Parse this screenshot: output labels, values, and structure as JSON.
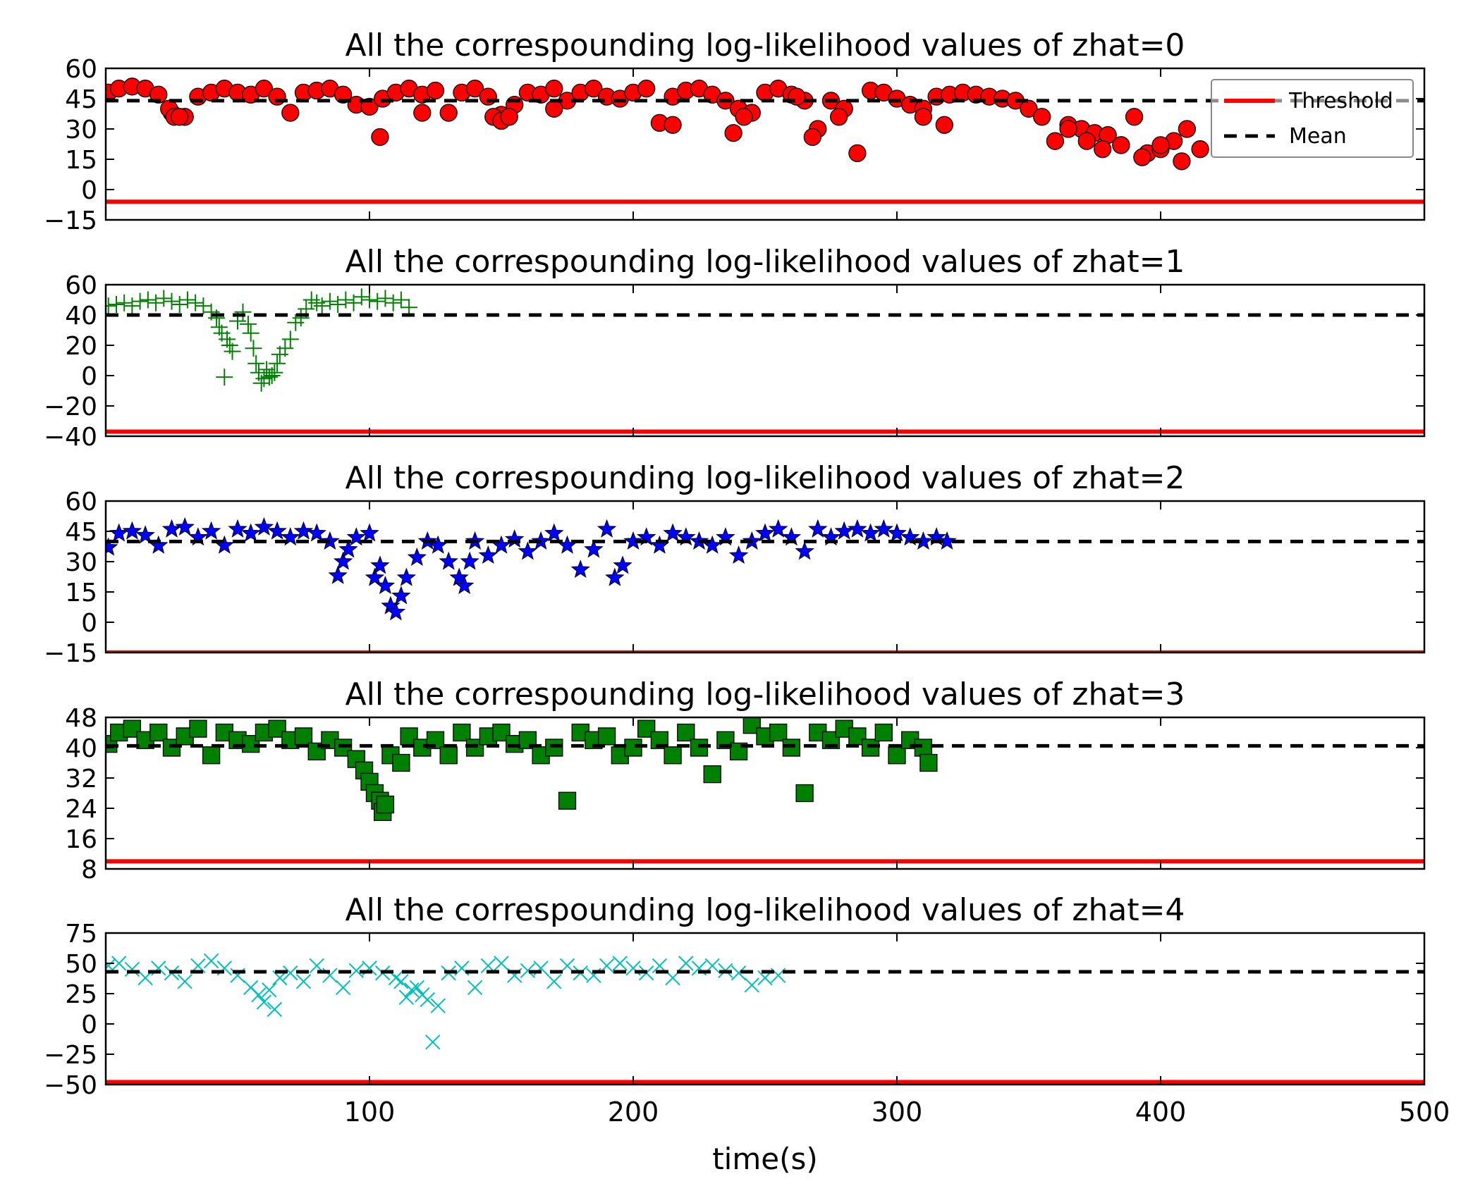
{
  "chart_data": [
    {
      "type": "scatter",
      "title": "All the correspounding log-likelihood values of zhat=0",
      "xlim": [
        0,
        500
      ],
      "ylim": [
        -15,
        60
      ],
      "yticks": [
        -15,
        0,
        15,
        30,
        45,
        60
      ],
      "threshold": -6,
      "mean": 44,
      "marker": "circle",
      "marker_color": "#ff0000",
      "series_range": [
        1,
        415
      ],
      "series": [
        {
          "x": [
            1,
            5,
            10,
            15,
            20,
            25,
            30,
            35,
            40,
            45,
            50,
            55,
            60,
            65,
            70,
            75,
            80,
            85,
            90,
            95,
            100,
            105,
            110,
            115,
            120,
            125,
            130,
            135,
            140,
            145,
            150,
            155,
            160,
            165,
            170,
            175,
            180,
            185,
            190,
            195,
            200,
            205,
            210,
            215,
            220,
            225,
            230,
            235,
            240,
            245,
            250,
            255,
            260,
            265,
            270,
            275,
            280,
            285,
            290,
            295,
            300,
            305,
            310,
            315,
            320,
            325,
            330,
            335,
            340,
            345,
            350,
            355,
            360,
            365,
            370,
            375,
            380,
            385,
            390,
            395,
            400,
            405,
            410,
            415
          ],
          "y": [
            48,
            50,
            51,
            50,
            47,
            38,
            36,
            46,
            48,
            50,
            48,
            47,
            50,
            46,
            38,
            48,
            49,
            50,
            47,
            42,
            41,
            45,
            48,
            50,
            47,
            49,
            38,
            48,
            50,
            46,
            37,
            42,
            48,
            47,
            50,
            44,
            48,
            50,
            46,
            45,
            48,
            50,
            33,
            46,
            49,
            50,
            47,
            44,
            40,
            38,
            48,
            50,
            47,
            44,
            30,
            44,
            40,
            18,
            49,
            48,
            45,
            42,
            40,
            46,
            47,
            48,
            47,
            46,
            45,
            44,
            40,
            36,
            24,
            32,
            30,
            28,
            27,
            22,
            36,
            18,
            20,
            24,
            30,
            20
          ]
        },
        {
          "x": [
            24,
            26,
            28,
            104,
            120,
            147,
            150,
            153,
            170,
            215,
            238,
            242,
            262,
            268,
            278,
            310,
            318,
            365,
            372,
            378,
            385,
            393,
            400,
            408
          ],
          "y": [
            40,
            36,
            36,
            26,
            38,
            36,
            34,
            36,
            40,
            32,
            28,
            36,
            46,
            26,
            36,
            36,
            32,
            30,
            24,
            20,
            22,
            16,
            22,
            14
          ]
        }
      ]
    },
    {
      "type": "scatter",
      "title": "All the correspounding log-likelihood values of zhat=1",
      "xlim": [
        0,
        500
      ],
      "ylim": [
        -40,
        60
      ],
      "yticks": [
        -40,
        -20,
        0,
        20,
        40,
        60
      ],
      "threshold": -37,
      "mean": 40,
      "marker": "plus",
      "marker_color": "#008000",
      "series_range": [
        1,
        116
      ],
      "series": [
        {
          "x": [
            1,
            4,
            7,
            10,
            13,
            16,
            19,
            22,
            25,
            28,
            31,
            34,
            37,
            40,
            42,
            43,
            44,
            45,
            46,
            47,
            48,
            50,
            52,
            54,
            55,
            56,
            57,
            58,
            59,
            60,
            61,
            62,
            63,
            64,
            65,
            66,
            68,
            70,
            72,
            74,
            76,
            78,
            80,
            82,
            85,
            88,
            91,
            94,
            97,
            100,
            103,
            106,
            109,
            112,
            115
          ],
          "y": [
            46,
            47,
            48,
            46,
            49,
            50,
            48,
            51,
            49,
            47,
            50,
            48,
            46,
            42,
            38,
            32,
            28,
            -1,
            24,
            20,
            16,
            36,
            42,
            34,
            28,
            18,
            8,
            2,
            -5,
            -2,
            4,
            -1,
            0,
            2,
            8,
            14,
            18,
            24,
            35,
            38,
            44,
            50,
            48,
            46,
            49,
            47,
            50,
            48,
            52,
            50,
            49,
            51,
            48,
            50,
            45
          ]
        }
      ]
    },
    {
      "type": "scatter",
      "title": "All the correspounding log-likelihood values of zhat=2",
      "xlim": [
        0,
        500
      ],
      "ylim": [
        -15,
        60
      ],
      "yticks": [
        -15,
        0,
        15,
        30,
        45,
        60
      ],
      "threshold": -15,
      "mean": 40,
      "marker": "star",
      "marker_color": "#0000ff",
      "series_range": [
        1,
        319
      ],
      "series": [
        {
          "x": [
            1,
            5,
            10,
            15,
            20,
            25,
            30,
            35,
            40,
            45,
            50,
            55,
            60,
            65,
            70,
            75,
            80,
            85,
            88,
            90,
            92,
            95,
            100,
            102,
            104,
            106,
            108,
            110,
            112,
            114,
            118,
            122,
            126,
            130,
            134,
            136,
            138,
            140,
            145,
            150,
            155,
            160,
            165,
            170,
            175,
            180,
            185,
            190,
            193,
            196,
            200,
            205,
            210,
            215,
            220,
            225,
            230,
            235,
            240,
            245,
            250,
            255,
            260,
            265,
            270,
            275,
            280,
            285,
            290,
            295,
            300,
            305,
            310,
            315,
            319
          ],
          "y": [
            37,
            44,
            45,
            43,
            38,
            46,
            47,
            42,
            45,
            38,
            46,
            44,
            47,
            45,
            42,
            45,
            44,
            40,
            23,
            30,
            36,
            42,
            44,
            22,
            28,
            18,
            8,
            5,
            13,
            22,
            32,
            40,
            38,
            30,
            22,
            18,
            30,
            40,
            33,
            38,
            41,
            35,
            40,
            44,
            38,
            26,
            36,
            46,
            22,
            28,
            40,
            42,
            38,
            44,
            42,
            40,
            38,
            42,
            33,
            40,
            44,
            46,
            42,
            35,
            46,
            42,
            45,
            46,
            44,
            46,
            44,
            42,
            40,
            42,
            40
          ]
        }
      ]
    },
    {
      "type": "scatter",
      "title": "All the correspounding log-likelihood values of zhat=3",
      "xlim": [
        0,
        500
      ],
      "ylim": [
        8,
        48
      ],
      "yticks": [
        8,
        16,
        24,
        32,
        40,
        48
      ],
      "threshold": 10,
      "mean": 40.5,
      "marker": "square",
      "marker_color": "#008000",
      "series_range": [
        1,
        312
      ],
      "series": [
        {
          "x": [
            1,
            5,
            10,
            15,
            20,
            25,
            30,
            35,
            40,
            45,
            50,
            55,
            60,
            65,
            70,
            75,
            80,
            85,
            90,
            95,
            98,
            100,
            102,
            104,
            105,
            106,
            108,
            112,
            115,
            120,
            125,
            130,
            135,
            140,
            145,
            150,
            155,
            160,
            165,
            170,
            175,
            180,
            185,
            190,
            195,
            200,
            205,
            210,
            215,
            220,
            225,
            230,
            235,
            240,
            245,
            250,
            255,
            260,
            265,
            270,
            275,
            280,
            285,
            290,
            295,
            300,
            305,
            310,
            312
          ],
          "y": [
            41,
            44,
            45,
            42,
            44,
            40,
            43,
            45,
            38,
            44,
            42,
            41,
            44,
            45,
            42,
            43,
            39,
            42,
            40,
            37,
            34,
            31,
            28,
            26,
            23,
            25,
            38,
            36,
            43,
            40,
            42,
            38,
            44,
            40,
            43,
            44,
            41,
            42,
            38,
            40,
            26,
            44,
            42,
            43,
            38,
            40,
            45,
            42,
            38,
            44,
            40,
            33,
            42,
            39,
            46,
            43,
            44,
            40,
            28,
            44,
            42,
            45,
            43,
            40,
            44,
            38,
            42,
            40,
            36
          ]
        }
      ]
    },
    {
      "type": "scatter",
      "title": "All the correspounding log-likelihood values of zhat=4",
      "xlim": [
        0,
        500
      ],
      "ylim": [
        -50,
        75
      ],
      "yticks": [
        -50,
        -25,
        0,
        25,
        50,
        75
      ],
      "threshold": -48,
      "mean": 43,
      "marker": "x",
      "marker_color": "#00bfbf",
      "series_range": [
        1,
        255
      ],
      "series": [
        {
          "x": [
            1,
            5,
            10,
            15,
            20,
            25,
            30,
            35,
            40,
            45,
            50,
            55,
            58,
            60,
            62,
            64,
            66,
            70,
            75,
            80,
            85,
            90,
            95,
            100,
            105,
            110,
            112,
            114,
            116,
            118,
            120,
            122,
            124,
            126,
            130,
            135,
            140,
            145,
            150,
            155,
            160,
            165,
            170,
            175,
            180,
            185,
            190,
            195,
            200,
            205,
            210,
            215,
            220,
            225,
            230,
            235,
            240,
            245,
            250,
            255
          ],
          "y": [
            48,
            50,
            45,
            38,
            46,
            42,
            35,
            48,
            52,
            46,
            40,
            30,
            24,
            18,
            28,
            12,
            38,
            42,
            35,
            48,
            40,
            30,
            44,
            46,
            42,
            38,
            35,
            22,
            28,
            30,
            24,
            20,
            -15,
            15,
            42,
            46,
            30,
            48,
            50,
            40,
            44,
            46,
            35,
            48,
            42,
            40,
            48,
            50,
            46,
            42,
            48,
            38,
            50,
            46,
            48,
            44,
            42,
            32,
            38,
            40
          ]
        }
      ]
    }
  ],
  "legend": {
    "threshold_label": "Threshold",
    "mean_label": "Mean",
    "threshold_color": "#ff0000",
    "mean_color": "#000000"
  },
  "xaxis": {
    "label": "time(s)",
    "ticks": [
      100,
      200,
      300,
      400,
      500
    ]
  }
}
